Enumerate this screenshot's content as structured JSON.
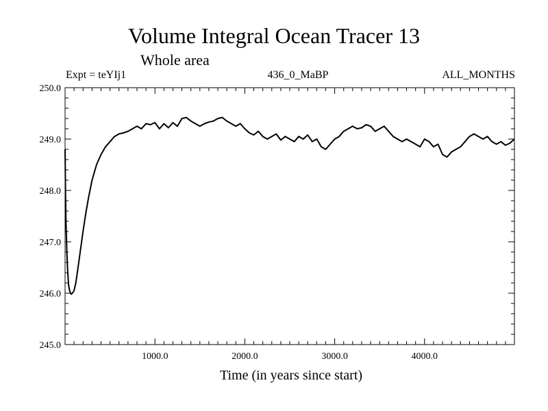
{
  "chart_data": {
    "type": "line",
    "title": "Volume Integral Ocean Tracer 13",
    "subtitle": "Whole area",
    "header_left": "Expt = teYIj1",
    "header_center": "436_0_MaBP",
    "header_right": "ALL_MONTHS",
    "xlabel": "Time (in years since start)",
    "ylabel": "",
    "xlim": [
      0,
      5000
    ],
    "ylim": [
      245.0,
      250.0
    ],
    "xticks": [
      1000,
      2000,
      3000,
      4000
    ],
    "xtick_labels": [
      "1000.0",
      "2000.0",
      "3000.0",
      "4000.0"
    ],
    "yticks": [
      245.0,
      246.0,
      247.0,
      248.0,
      249.0,
      250.0
    ],
    "ytick_labels": [
      "245.0",
      "246.0",
      "247.0",
      "248.0",
      "249.0",
      "250.0"
    ],
    "grid": false,
    "legend": "none",
    "series": [
      {
        "name": "Volume Integral Ocean Tracer 13",
        "x": [
          0,
          5,
          10,
          20,
          30,
          40,
          50,
          60,
          70,
          80,
          90,
          100,
          120,
          140,
          160,
          180,
          200,
          230,
          260,
          300,
          350,
          400,
          450,
          500,
          550,
          600,
          650,
          700,
          750,
          800,
          850,
          900,
          950,
          1000,
          1050,
          1100,
          1150,
          1200,
          1250,
          1300,
          1350,
          1400,
          1450,
          1500,
          1550,
          1600,
          1650,
          1700,
          1750,
          1800,
          1850,
          1900,
          1950,
          2000,
          2050,
          2100,
          2150,
          2200,
          2250,
          2300,
          2350,
          2400,
          2450,
          2500,
          2550,
          2600,
          2650,
          2700,
          2750,
          2800,
          2850,
          2900,
          2950,
          3000,
          3050,
          3100,
          3150,
          3200,
          3250,
          3300,
          3350,
          3400,
          3450,
          3500,
          3550,
          3600,
          3650,
          3700,
          3750,
          3800,
          3850,
          3900,
          3950,
          4000,
          4050,
          4100,
          4150,
          4200,
          4250,
          4300,
          4350,
          4400,
          4450,
          4500,
          4550,
          4600,
          4650,
          4700,
          4750,
          4800,
          4850,
          4900,
          4950,
          5000
        ],
        "values": [
          248.8,
          247.9,
          247.4,
          246.8,
          246.4,
          246.15,
          246.05,
          246.0,
          245.98,
          246.0,
          246.02,
          246.05,
          246.2,
          246.45,
          246.7,
          246.95,
          247.2,
          247.55,
          247.85,
          248.2,
          248.5,
          248.7,
          248.85,
          248.95,
          249.05,
          249.1,
          249.12,
          249.15,
          249.2,
          249.25,
          249.2,
          249.3,
          249.28,
          249.32,
          249.2,
          249.3,
          249.22,
          249.32,
          249.25,
          249.4,
          249.42,
          249.35,
          249.3,
          249.25,
          249.3,
          249.33,
          249.35,
          249.4,
          249.42,
          249.35,
          249.3,
          249.25,
          249.3,
          249.2,
          249.12,
          249.08,
          249.15,
          249.05,
          249.0,
          249.05,
          249.1,
          248.98,
          249.05,
          249.0,
          248.95,
          249.05,
          249.0,
          249.08,
          248.95,
          249.0,
          248.85,
          248.8,
          248.9,
          249.0,
          249.05,
          249.15,
          249.2,
          249.25,
          249.2,
          249.22,
          249.28,
          249.25,
          249.15,
          249.2,
          249.25,
          249.15,
          249.05,
          249.0,
          248.95,
          249.0,
          248.95,
          248.9,
          248.85,
          249.0,
          248.95,
          248.85,
          248.9,
          248.7,
          248.65,
          248.75,
          248.8,
          248.85,
          248.95,
          249.05,
          249.1,
          249.05,
          249.0,
          249.05,
          248.95,
          248.9,
          248.95,
          248.88,
          248.92,
          249.0
        ]
      }
    ]
  }
}
